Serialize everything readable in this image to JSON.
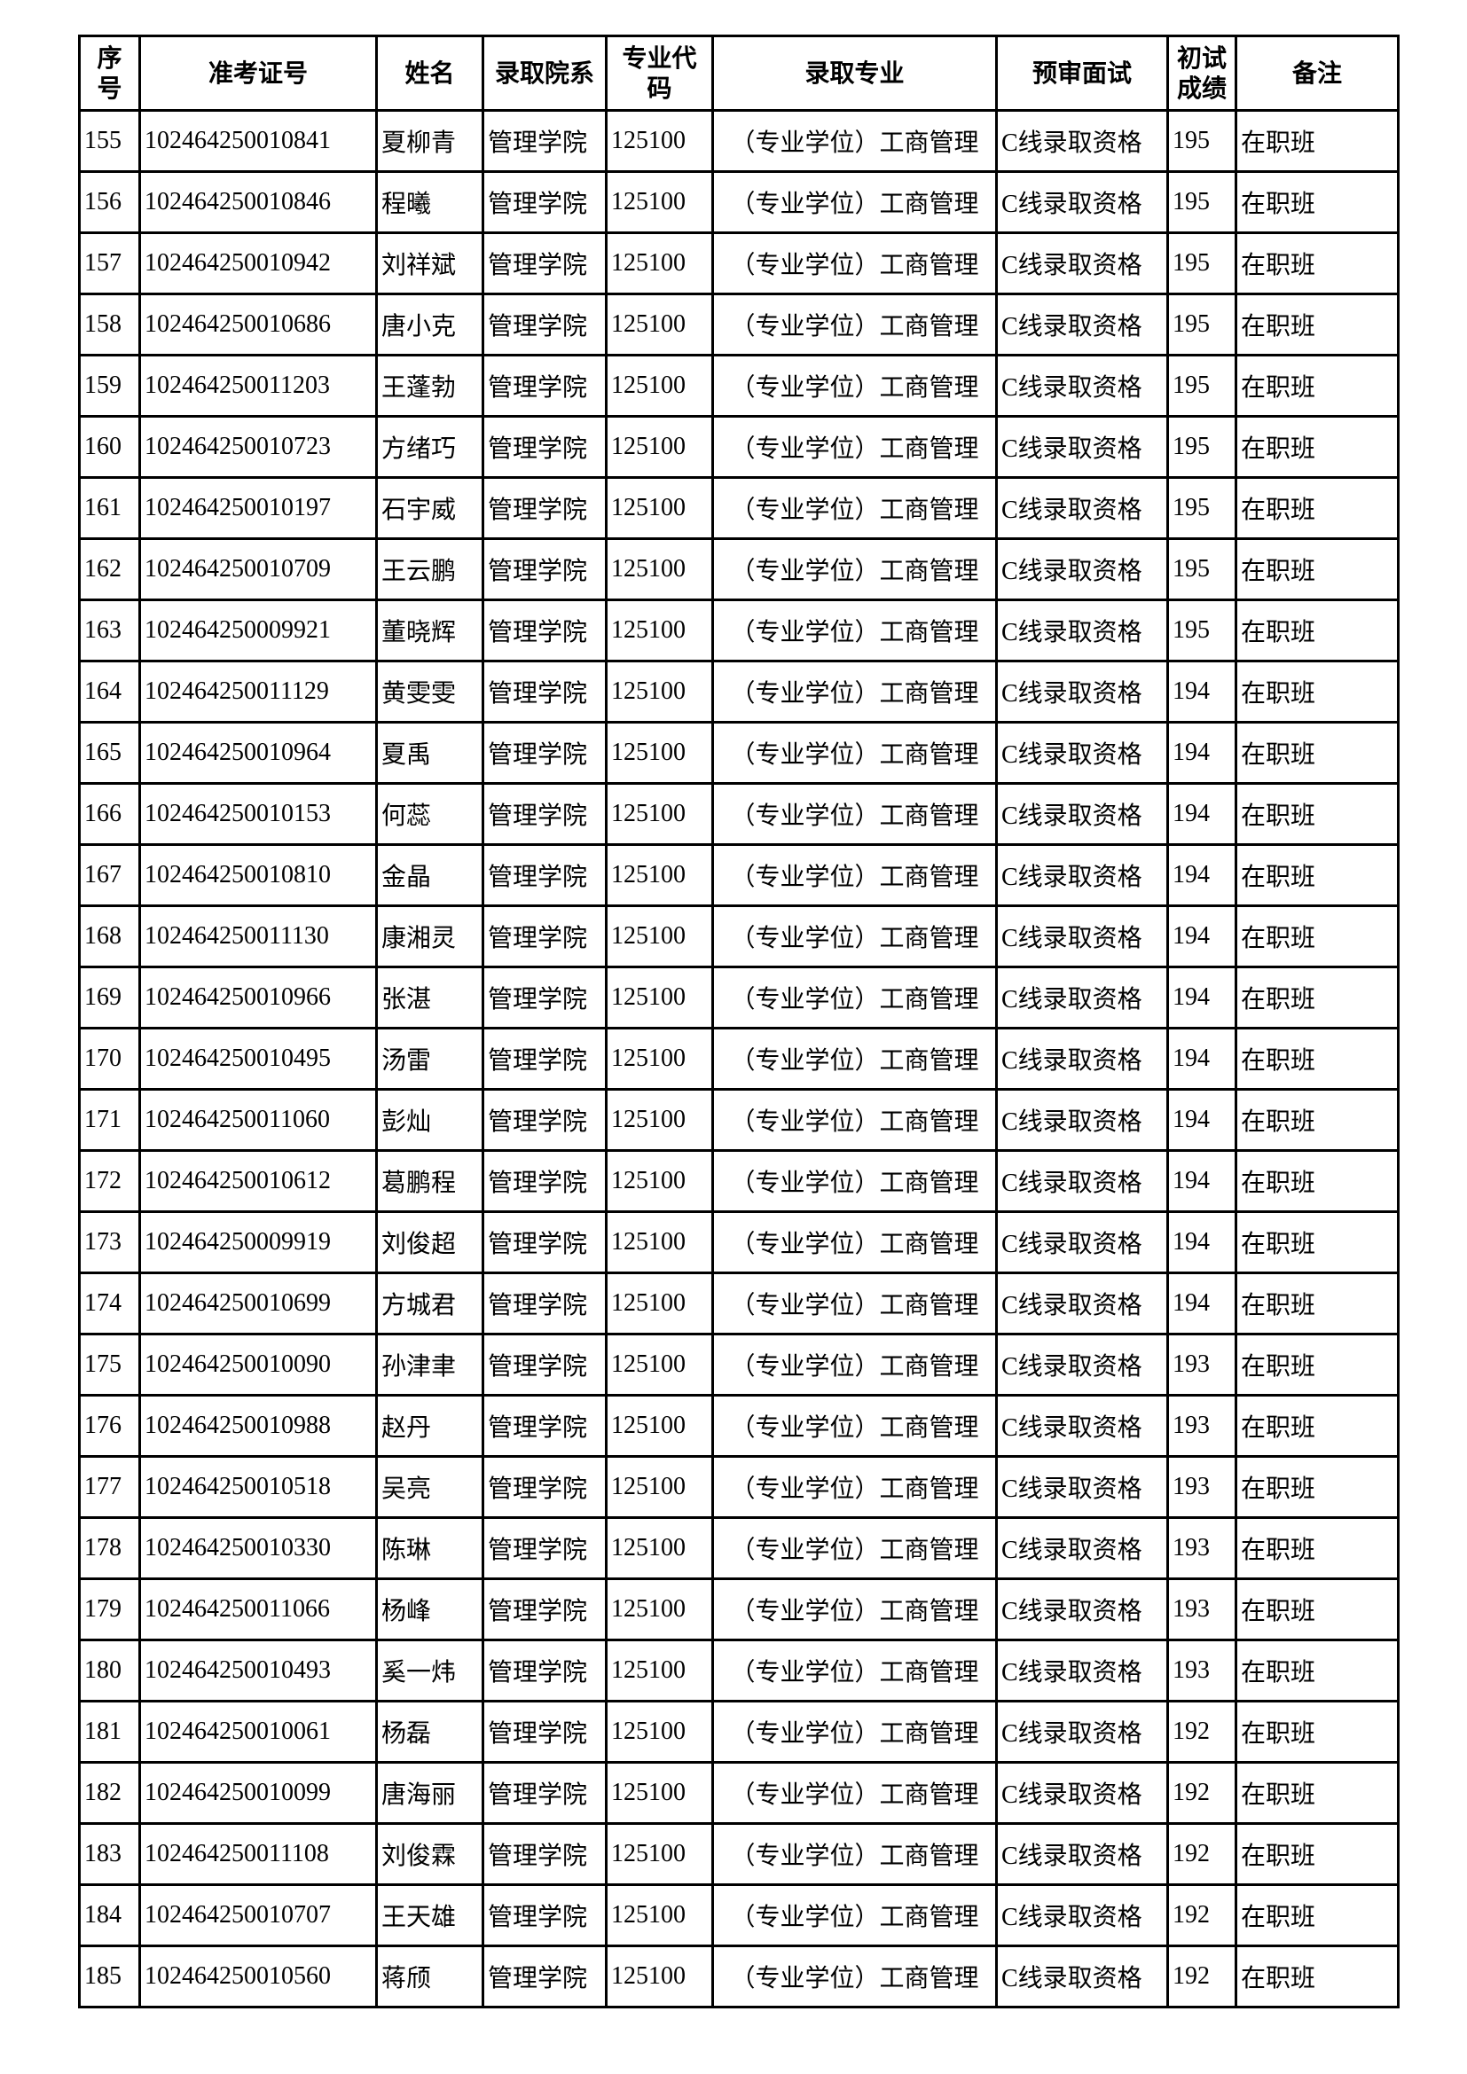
{
  "headers": [
    "序号",
    "准考证号",
    "姓名",
    "录取院系",
    "专业代码",
    "录取专业",
    "预审面试",
    "初试成绩",
    "备注"
  ],
  "header_lines": [
    [
      "序",
      "号"
    ],
    [
      "准考证号"
    ],
    [
      "姓名"
    ],
    [
      "录取院系"
    ],
    [
      "专业代",
      "码"
    ],
    [
      "录取专业"
    ],
    [
      "预审面试"
    ],
    [
      "初试",
      "成绩"
    ],
    [
      "备注"
    ]
  ],
  "rows": [
    [
      "155",
      "102464250010841",
      "夏柳青",
      "管理学院",
      "125100",
      "（专业学位）工商管理",
      "C线录取资格",
      "195",
      "在职班"
    ],
    [
      "156",
      "102464250010846",
      "程曦",
      "管理学院",
      "125100",
      "（专业学位）工商管理",
      "C线录取资格",
      "195",
      "在职班"
    ],
    [
      "157",
      "102464250010942",
      "刘祥斌",
      "管理学院",
      "125100",
      "（专业学位）工商管理",
      "C线录取资格",
      "195",
      "在职班"
    ],
    [
      "158",
      "102464250010686",
      "唐小克",
      "管理学院",
      "125100",
      "（专业学位）工商管理",
      "C线录取资格",
      "195",
      "在职班"
    ],
    [
      "159",
      "102464250011203",
      "王蓬勃",
      "管理学院",
      "125100",
      "（专业学位）工商管理",
      "C线录取资格",
      "195",
      "在职班"
    ],
    [
      "160",
      "102464250010723",
      "方绪巧",
      "管理学院",
      "125100",
      "（专业学位）工商管理",
      "C线录取资格",
      "195",
      "在职班"
    ],
    [
      "161",
      "102464250010197",
      "石宇威",
      "管理学院",
      "125100",
      "（专业学位）工商管理",
      "C线录取资格",
      "195",
      "在职班"
    ],
    [
      "162",
      "102464250010709",
      "王云鹏",
      "管理学院",
      "125100",
      "（专业学位）工商管理",
      "C线录取资格",
      "195",
      "在职班"
    ],
    [
      "163",
      "102464250009921",
      "董晓辉",
      "管理学院",
      "125100",
      "（专业学位）工商管理",
      "C线录取资格",
      "195",
      "在职班"
    ],
    [
      "164",
      "102464250011129",
      "黄雯雯",
      "管理学院",
      "125100",
      "（专业学位）工商管理",
      "C线录取资格",
      "194",
      "在职班"
    ],
    [
      "165",
      "102464250010964",
      "夏禹",
      "管理学院",
      "125100",
      "（专业学位）工商管理",
      "C线录取资格",
      "194",
      "在职班"
    ],
    [
      "166",
      "102464250010153",
      "何蕊",
      "管理学院",
      "125100",
      "（专业学位）工商管理",
      "C线录取资格",
      "194",
      "在职班"
    ],
    [
      "167",
      "102464250010810",
      "金晶",
      "管理学院",
      "125100",
      "（专业学位）工商管理",
      "C线录取资格",
      "194",
      "在职班"
    ],
    [
      "168",
      "102464250011130",
      "康湘灵",
      "管理学院",
      "125100",
      "（专业学位）工商管理",
      "C线录取资格",
      "194",
      "在职班"
    ],
    [
      "169",
      "102464250010966",
      "张湛",
      "管理学院",
      "125100",
      "（专业学位）工商管理",
      "C线录取资格",
      "194",
      "在职班"
    ],
    [
      "170",
      "102464250010495",
      "汤雷",
      "管理学院",
      "125100",
      "（专业学位）工商管理",
      "C线录取资格",
      "194",
      "在职班"
    ],
    [
      "171",
      "102464250011060",
      "彭灿",
      "管理学院",
      "125100",
      "（专业学位）工商管理",
      "C线录取资格",
      "194",
      "在职班"
    ],
    [
      "172",
      "102464250010612",
      "葛鹏程",
      "管理学院",
      "125100",
      "（专业学位）工商管理",
      "C线录取资格",
      "194",
      "在职班"
    ],
    [
      "173",
      "102464250009919",
      "刘俊超",
      "管理学院",
      "125100",
      "（专业学位）工商管理",
      "C线录取资格",
      "194",
      "在职班"
    ],
    [
      "174",
      "102464250010699",
      "方城君",
      "管理学院",
      "125100",
      "（专业学位）工商管理",
      "C线录取资格",
      "194",
      "在职班"
    ],
    [
      "175",
      "102464250010090",
      "孙津聿",
      "管理学院",
      "125100",
      "（专业学位）工商管理",
      "C线录取资格",
      "193",
      "在职班"
    ],
    [
      "176",
      "102464250010988",
      "赵丹",
      "管理学院",
      "125100",
      "（专业学位）工商管理",
      "C线录取资格",
      "193",
      "在职班"
    ],
    [
      "177",
      "102464250010518",
      "吴亮",
      "管理学院",
      "125100",
      "（专业学位）工商管理",
      "C线录取资格",
      "193",
      "在职班"
    ],
    [
      "178",
      "102464250010330",
      "陈琳",
      "管理学院",
      "125100",
      "（专业学位）工商管理",
      "C线录取资格",
      "193",
      "在职班"
    ],
    [
      "179",
      "102464250011066",
      "杨峰",
      "管理学院",
      "125100",
      "（专业学位）工商管理",
      "C线录取资格",
      "193",
      "在职班"
    ],
    [
      "180",
      "102464250010493",
      "奚一炜",
      "管理学院",
      "125100",
      "（专业学位）工商管理",
      "C线录取资格",
      "193",
      "在职班"
    ],
    [
      "181",
      "102464250010061",
      "杨磊",
      "管理学院",
      "125100",
      "（专业学位）工商管理",
      "C线录取资格",
      "192",
      "在职班"
    ],
    [
      "182",
      "102464250010099",
      "唐海丽",
      "管理学院",
      "125100",
      "（专业学位）工商管理",
      "C线录取资格",
      "192",
      "在职班"
    ],
    [
      "183",
      "102464250011108",
      "刘俊霖",
      "管理学院",
      "125100",
      "（专业学位）工商管理",
      "C线录取资格",
      "192",
      "在职班"
    ],
    [
      "184",
      "102464250010707",
      "王天雄",
      "管理学院",
      "125100",
      "（专业学位）工商管理",
      "C线录取资格",
      "192",
      "在职班"
    ],
    [
      "185",
      "102464250010560",
      "蒋颀",
      "管理学院",
      "125100",
      "（专业学位）工商管理",
      "C线录取资格",
      "192",
      "在职班"
    ]
  ]
}
